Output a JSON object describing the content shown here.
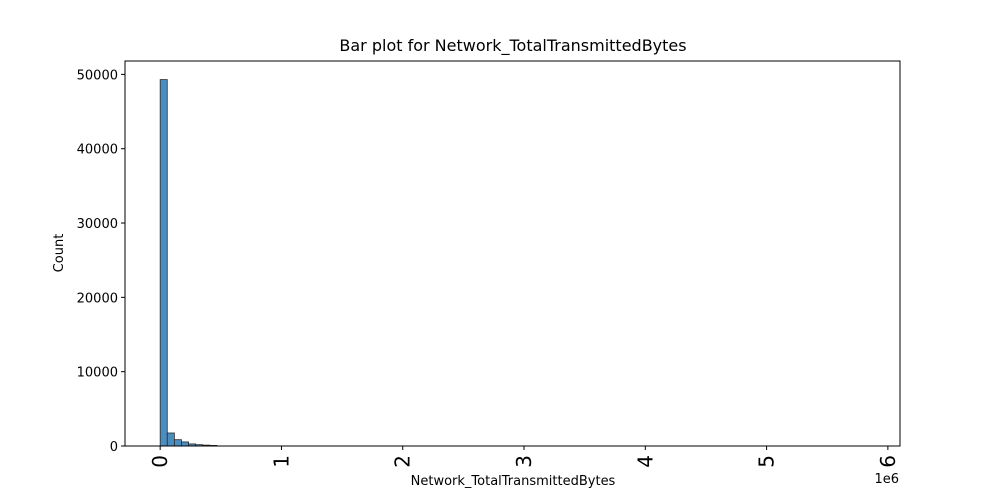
{
  "chart_data": {
    "type": "bar",
    "title": "Bar plot for Network_TotalTransmittedBytes",
    "xlabel": "Network_TotalTransmittedBytes",
    "ylabel": "Count",
    "x_offset_label": "1e6",
    "x_scale": 1000000,
    "xlim": [
      -0.29,
      6.1
    ],
    "ylim": [
      0,
      51800
    ],
    "xticks": [
      0,
      1,
      2,
      3,
      4,
      5,
      6
    ],
    "xtick_labels": [
      "0",
      "1",
      "2",
      "3",
      "4",
      "5",
      "6"
    ],
    "yticks": [
      0,
      10000,
      20000,
      30000,
      40000,
      50000
    ],
    "ytick_labels": [
      "0",
      "10000",
      "20000",
      "30000",
      "40000",
      "50000"
    ],
    "bin_width": 0.0585,
    "bin_starts": [
      0,
      0.0585,
      0.117,
      0.1755,
      0.234,
      0.2925,
      0.351,
      0.4095
    ],
    "values": [
      49300,
      1750,
      850,
      550,
      280,
      180,
      120,
      80
    ],
    "grid": false,
    "legend": "none",
    "bar_color": "#4c8dbf",
    "edge_color": "#2b2b2b"
  }
}
